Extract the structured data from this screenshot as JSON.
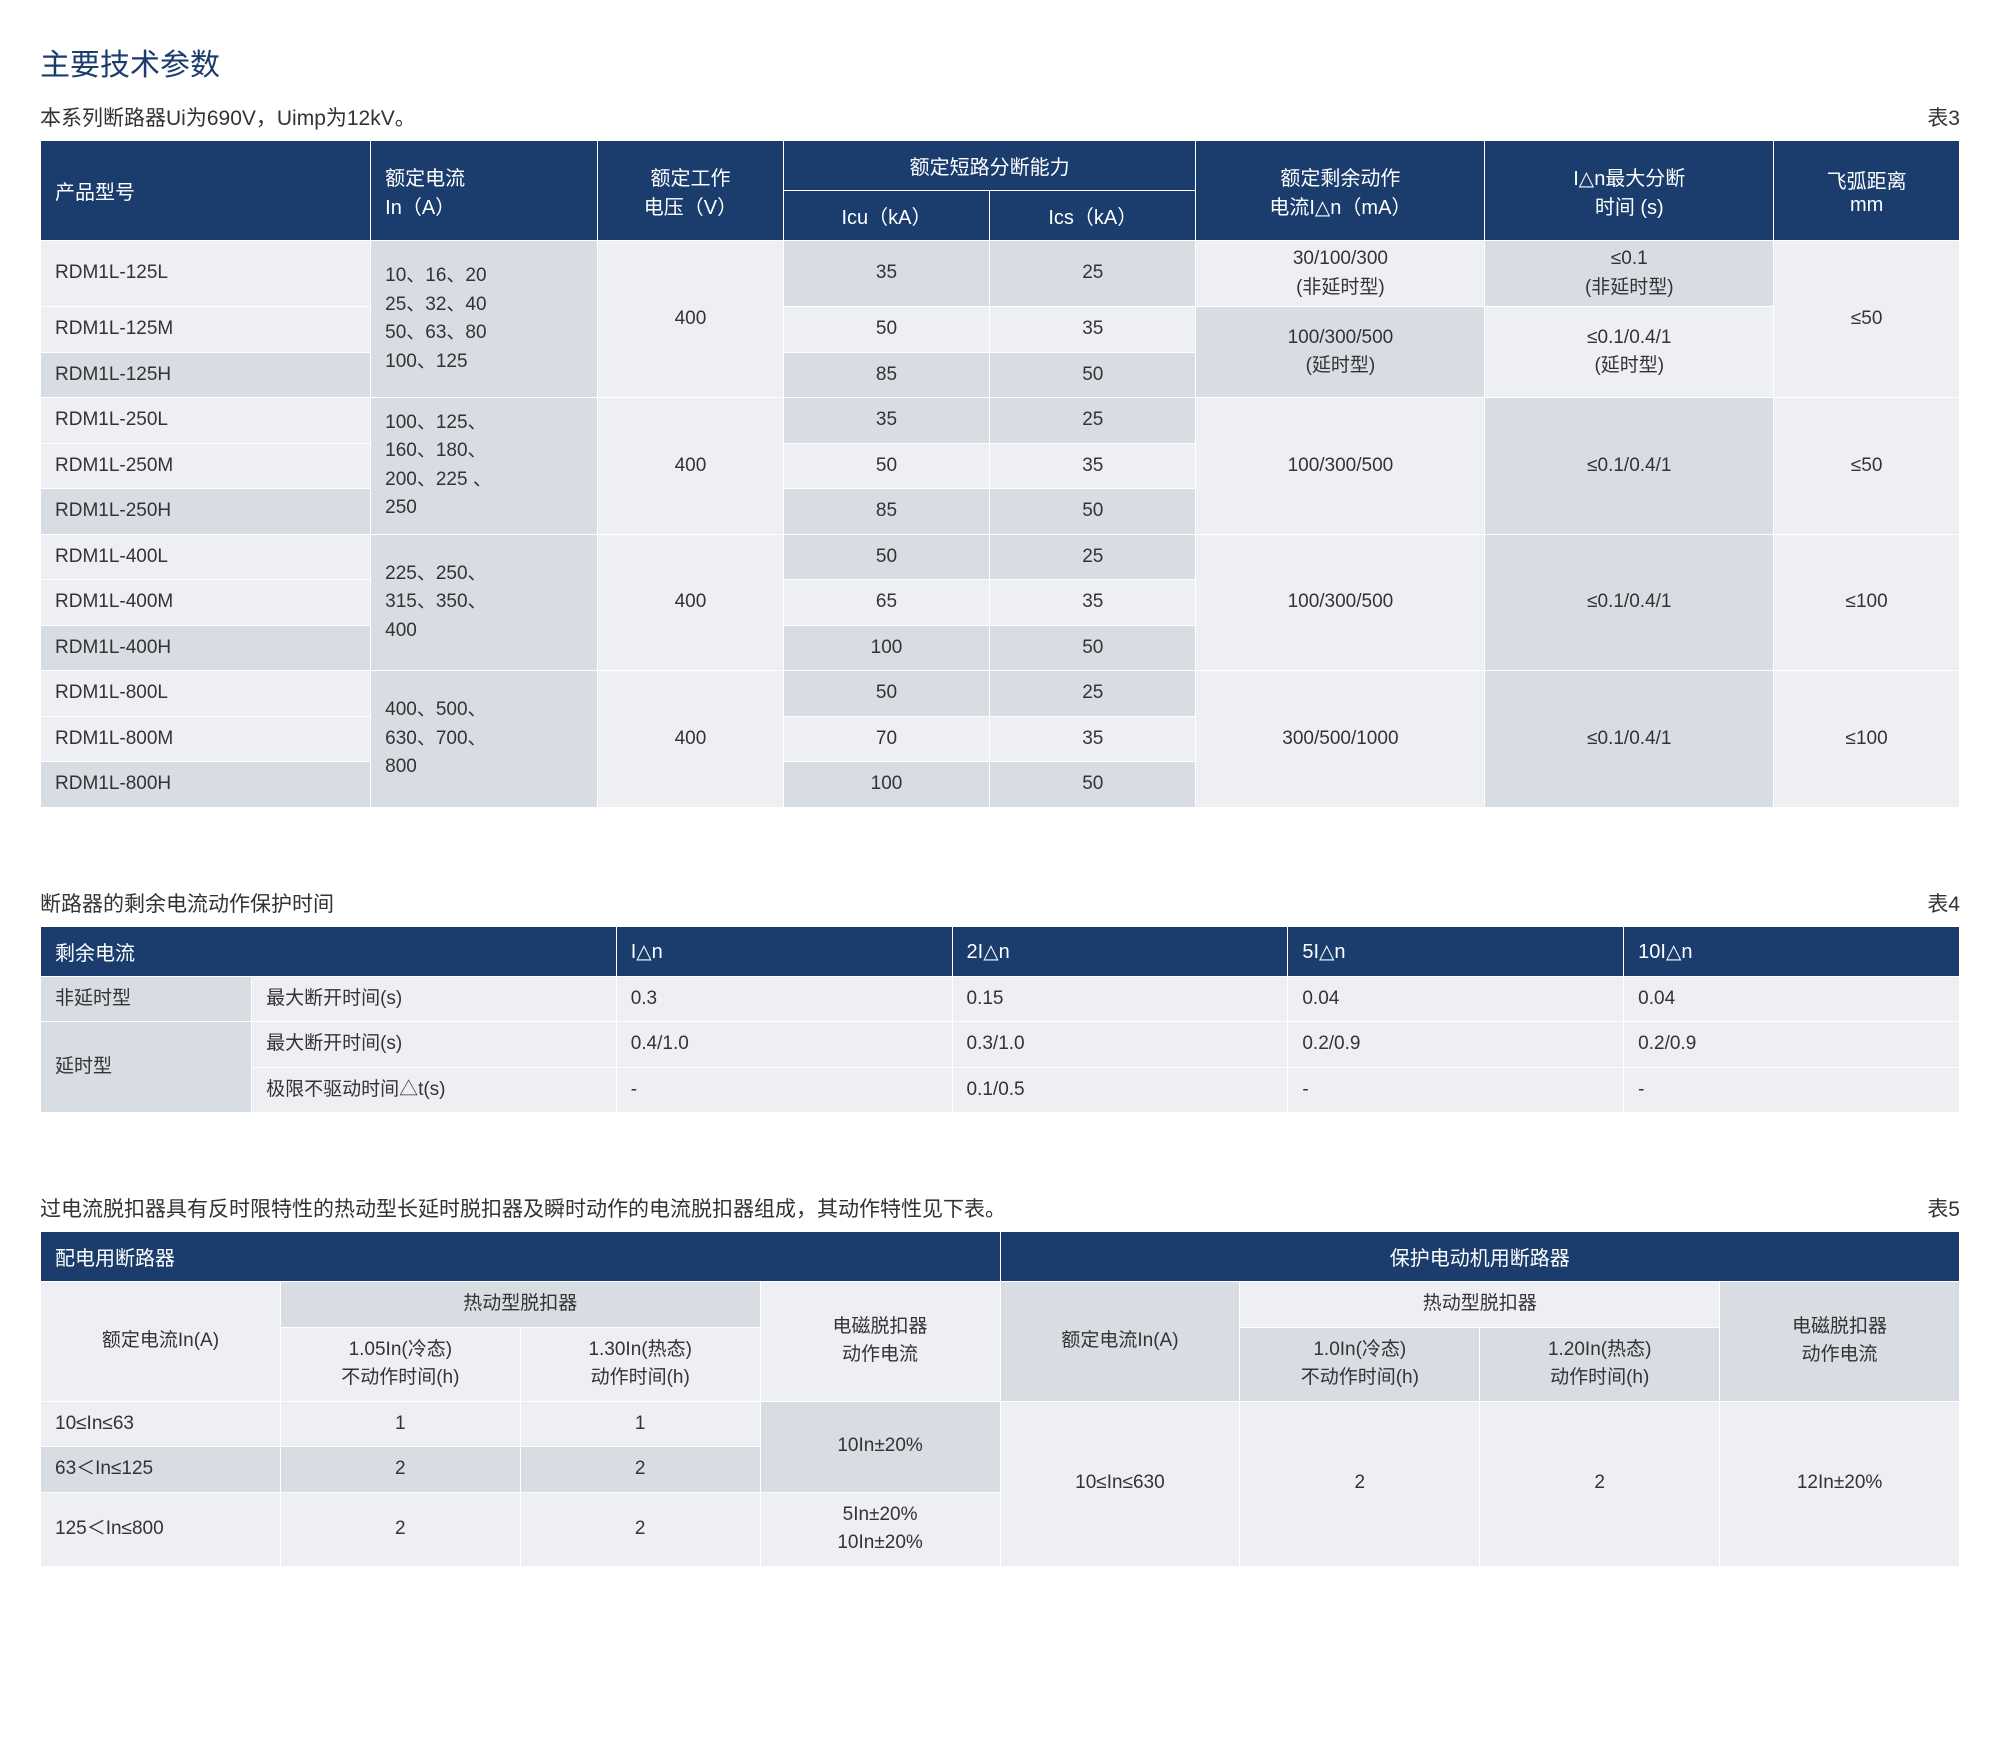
{
  "colors": {
    "header_bg": "#1a3d6d",
    "header_text": "#ffffff",
    "row_light": "#edeff2",
    "row_dark": "#d8dce3",
    "title_color": "#1a3d6d",
    "text_color": "#333333",
    "border_color": "#ffffff"
  },
  "typography": {
    "title_fontsize": 30,
    "subtitle_fontsize": 21,
    "header_fontsize": 20,
    "cell_fontsize": 19,
    "font_family": "Microsoft YaHei"
  },
  "main_title": "主要技术参数",
  "table3": {
    "subtitle": "本系列断路器Ui为690V，Uimp为12kV。",
    "label": "表3",
    "headers": {
      "model": "产品型号",
      "rated_current": "额定电流\nIn（A）",
      "rated_voltage": "额定工作\n电压（V）",
      "breaking_capacity": "额定短路分断能力",
      "icu": "Icu（kA）",
      "ics": "Ics（kA）",
      "residual_current": "额定剩余动作\n电流I△n（mA）",
      "max_break_time": "I△n最大分断\n时间 (s)",
      "arc_distance": "飞弧距离\nmm"
    },
    "groups": [
      {
        "models": [
          "RDM1L-125L",
          "RDM1L-125M",
          "RDM1L-125H"
        ],
        "current": "10、16、20\n25、32、40\n50、63、80\n100、125",
        "voltage": "400",
        "icu": [
          "35",
          "50",
          "85"
        ],
        "ics": [
          "25",
          "35",
          "50"
        ],
        "residual": [
          "30/100/300\n(非延时型)",
          "100/300/500\n(延时型)"
        ],
        "break_time": [
          "≤0.1\n(非延时型)",
          "≤0.1/0.4/1\n(延时型)"
        ],
        "arc": "≤50"
      },
      {
        "models": [
          "RDM1L-250L",
          "RDM1L-250M",
          "RDM1L-250H"
        ],
        "current": "100、125、\n160、180、\n200、225 、\n250",
        "voltage": "400",
        "icu": [
          "35",
          "50",
          "85"
        ],
        "ics": [
          "25",
          "35",
          "50"
        ],
        "residual_single": "100/300/500",
        "break_time_single": "≤0.1/0.4/1",
        "arc": "≤50"
      },
      {
        "models": [
          "RDM1L-400L",
          "RDM1L-400M",
          "RDM1L-400H"
        ],
        "current": "225、250、\n315、350、\n400",
        "voltage": "400",
        "icu": [
          "50",
          "65",
          "100"
        ],
        "ics": [
          "25",
          "35",
          "50"
        ],
        "residual_single": "100/300/500",
        "break_time_single": "≤0.1/0.4/1",
        "arc": "≤100"
      },
      {
        "models": [
          "RDM1L-800L",
          "RDM1L-800M",
          "RDM1L-800H"
        ],
        "current": "400、500、\n630、700、\n800",
        "voltage": "400",
        "icu": [
          "50",
          "70",
          "100"
        ],
        "ics": [
          "25",
          "35",
          "50"
        ],
        "residual_single": "300/500/1000",
        "break_time_single": "≤0.1/0.4/1",
        "arc": "≤100"
      }
    ]
  },
  "table4": {
    "title": "断路器的剩余电流动作保护时间",
    "label": "表4",
    "headers": {
      "residual": "剩余电流",
      "c1": "I△n",
      "c2": "2I△n",
      "c3": "5I△n",
      "c4": "10I△n"
    },
    "rows": [
      {
        "type": "非延时型",
        "label": "最大断开时间(s)",
        "vals": [
          "0.3",
          "0.15",
          "0.04",
          "0.04"
        ]
      },
      {
        "type": "延时型",
        "label": "最大断开时间(s)",
        "vals": [
          "0.4/1.0",
          "0.3/1.0",
          "0.2/0.9",
          "0.2/0.9"
        ]
      },
      {
        "type": "",
        "label": "极限不驱动时间△t(s)",
        "vals": [
          "-",
          "0.1/0.5",
          "-",
          "-"
        ]
      }
    ]
  },
  "table5": {
    "title": "过电流脱扣器具有反时限特性的热动型长延时脱扣器及瞬时动作的电流脱扣器组成，其动作特性见下表。",
    "label": "表5",
    "headers": {
      "left_group": "配电用断路器",
      "right_group": "保护电动机用断路器",
      "thermal": "热动型脱扣器",
      "rated_current": "额定电流In(A)",
      "left_cold": "1.05In(冷态)\n不动作时间(h)",
      "left_hot": "1.30In(热态)\n动作时间(h)",
      "em_current": "电磁脱扣器\n动作电流",
      "right_cold": "1.0In(冷态)\n不动作时间(h)",
      "right_hot": "1.20In(热态)\n动作时间(h)"
    },
    "left_rows": [
      {
        "range": "10≤In≤63",
        "cold": "1",
        "hot": "1"
      },
      {
        "range": "63＜In≤125",
        "cold": "2",
        "hot": "2"
      },
      {
        "range": "125＜In≤800",
        "cold": "2",
        "hot": "2"
      }
    ],
    "left_em": [
      "10In±20%",
      "5In±20%\n10In±20%"
    ],
    "right_row": {
      "range": "10≤In≤630",
      "cold": "2",
      "hot": "2",
      "em": "12In±20%"
    }
  }
}
